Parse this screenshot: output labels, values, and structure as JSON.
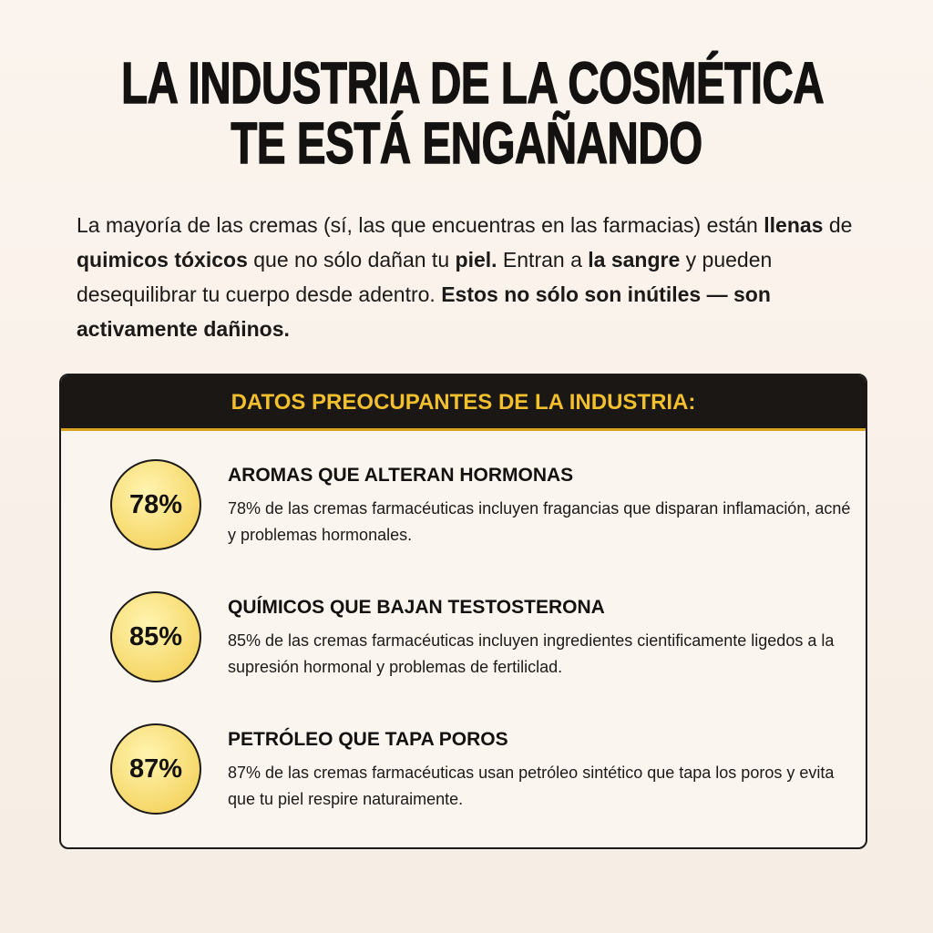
{
  "header": {
    "title_lines": [
      "LA INDUSTRIA DE LA COSMÉTICA",
      "TE ESTÁ ENGAÑANDO"
    ]
  },
  "intro": {
    "segments": [
      {
        "text": "La mayoría de las cremas (sí, las que encuentras en las farmacias) están ",
        "bold": false
      },
      {
        "text": "llenas",
        "bold": true
      },
      {
        "text": " de ",
        "bold": false
      },
      {
        "text": "quimicos tóxicos",
        "bold": true
      },
      {
        "text": " que no sólo dañan tu ",
        "bold": false
      },
      {
        "text": "piel.",
        "bold": true
      },
      {
        "text": " Entran a ",
        "bold": false
      },
      {
        "text": "la sangre",
        "bold": true
      },
      {
        "text": " y pueden desequilibrar tu cuerpo desde adentro. ",
        "bold": false
      },
      {
        "text": "Estos no sólo son inútiles — son activamente dañinos.",
        "bold": true
      }
    ]
  },
  "box": {
    "heading": "DATOS PREOCUPANTES DE LA INDUSTRIA:",
    "items": [
      {
        "badge": "78%",
        "title": "AROMAS QUE ALTERAN HORMONAS",
        "description": "78% de las cremas farmacéuticas incluyen fragancias que disparan inflamación, acné y problemas hormonales."
      },
      {
        "badge": "85%",
        "title": "QUÍMICOS QUE BAJAN TESTOSTERONA",
        "description": "85% de las cremas farmacéuticas incluyen ingredientes cientificamente ligedos a la supresión hormonal y problemas de fertiliclad."
      },
      {
        "badge": "87%",
        "title": "PETRÓLEO QUE TAPA POROS",
        "description": "87% de las cremas farmacéuticas usan petróleo sintético que tapa los poros y evita que tu piel respire naturaimente."
      }
    ]
  }
}
